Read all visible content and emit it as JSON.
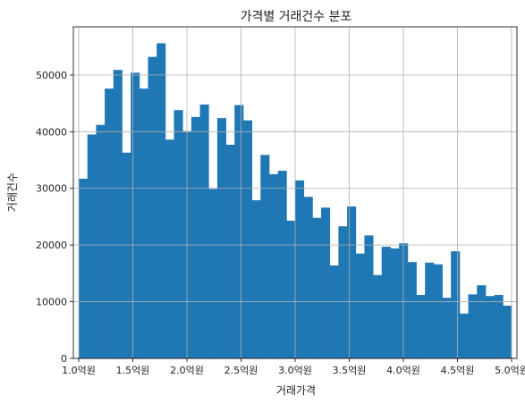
{
  "chart_data": {
    "type": "bar",
    "title": "가격별 거래건수 분포",
    "xlabel": "거래가격",
    "ylabel": "거래건수",
    "x_range": [
      0.95,
      5.05
    ],
    "ylim": [
      0,
      58500
    ],
    "grid": true,
    "legend": "none",
    "bar_color": "#1f77b4",
    "x_ticks": [
      {
        "value": 1.0,
        "label": "1.0억원"
      },
      {
        "value": 1.5,
        "label": "1.5억원"
      },
      {
        "value": 2.0,
        "label": "2.0억원"
      },
      {
        "value": 2.5,
        "label": "2.5억원"
      },
      {
        "value": 3.0,
        "label": "3.0억원"
      },
      {
        "value": 3.5,
        "label": "3.5억원"
      },
      {
        "value": 4.0,
        "label": "4.0억원"
      },
      {
        "value": 4.5,
        "label": "4.5억원"
      },
      {
        "value": 5.0,
        "label": "5.0억원"
      }
    ],
    "y_ticks": [
      {
        "value": 0,
        "label": "0"
      },
      {
        "value": 10000,
        "label": "10000"
      },
      {
        "value": 20000,
        "label": "20000"
      },
      {
        "value": 30000,
        "label": "30000"
      },
      {
        "value": 40000,
        "label": "40000"
      },
      {
        "value": 50000,
        "label": "50000"
      }
    ],
    "bin_edges": [
      1.0,
      1.08,
      1.16,
      1.24,
      1.32,
      1.4,
      1.48,
      1.56,
      1.64,
      1.72,
      1.8,
      1.88,
      1.96,
      2.04,
      2.12,
      2.2,
      2.28,
      2.36,
      2.44,
      2.52,
      2.6,
      2.68,
      2.76,
      2.84,
      2.92,
      3.0,
      3.08,
      3.16,
      3.24,
      3.32,
      3.4,
      3.48,
      3.56,
      3.64,
      3.72,
      3.8,
      3.88,
      3.96,
      4.04,
      4.12,
      4.2,
      4.28,
      4.36,
      4.44,
      4.52,
      4.6,
      4.68,
      4.76,
      4.84,
      4.92,
      5.0
    ],
    "values": [
      31700,
      39500,
      41200,
      47600,
      50900,
      36300,
      50400,
      47600,
      53200,
      55600,
      38600,
      43800,
      40100,
      42600,
      44800,
      29900,
      42400,
      37700,
      44700,
      42000,
      27900,
      35900,
      32500,
      33100,
      24300,
      31400,
      28500,
      24800,
      26600,
      16400,
      23300,
      26800,
      18500,
      21700,
      14700,
      19700,
      19400,
      20300,
      17000,
      11200,
      16900,
      16600,
      10700,
      18900,
      7900,
      11300,
      12900,
      11000,
      11200,
      9300
    ]
  }
}
